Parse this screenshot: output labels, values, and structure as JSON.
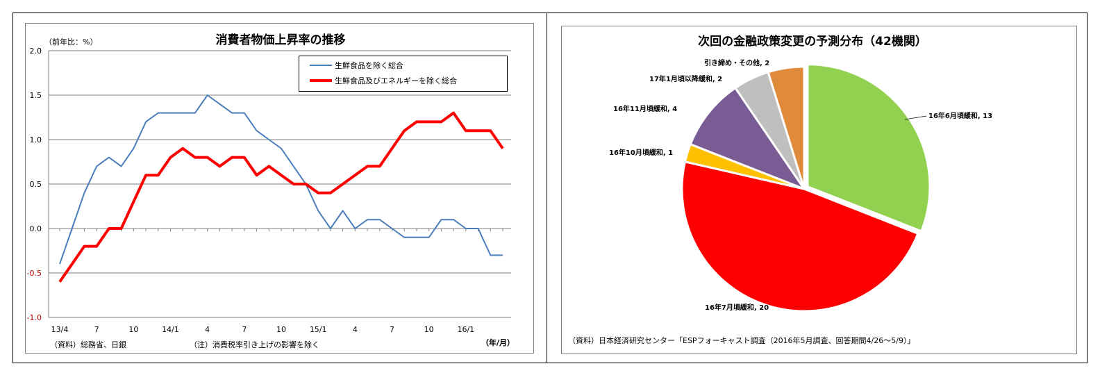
{
  "chart_data": [
    {
      "type": "line",
      "title": "消費者物価上昇率の推移",
      "yunit": "（前年比：%）",
      "xunit": "（年/月）",
      "source": "（資料）総務省、日銀",
      "note": "（注）消費税率引き上げの影響を除く",
      "ylim": [
        -1.0,
        2.0
      ],
      "yticks": [
        "2.0",
        "1.5",
        "1.0",
        "0.5",
        "0.0",
        "-0.5",
        "-1.0"
      ],
      "xticks": [
        {
          "i": 0,
          "label": "13/4"
        },
        {
          "i": 3,
          "label": "7"
        },
        {
          "i": 6,
          "label": "10"
        },
        {
          "i": 9,
          "label": "14/1"
        },
        {
          "i": 12,
          "label": "4"
        },
        {
          "i": 15,
          "label": "7"
        },
        {
          "i": 18,
          "label": "10"
        },
        {
          "i": 21,
          "label": "15/1"
        },
        {
          "i": 24,
          "label": "4"
        },
        {
          "i": 27,
          "label": "7"
        },
        {
          "i": 30,
          "label": "10"
        },
        {
          "i": 33,
          "label": "16/1"
        }
      ],
      "grid": true,
      "legend": "top-right",
      "series": [
        {
          "name": "生鮮食品を除く総合",
          "color": "#4a7ebb",
          "values": [
            -0.4,
            0.0,
            0.4,
            0.7,
            0.8,
            0.7,
            0.9,
            1.2,
            1.3,
            1.3,
            1.3,
            1.3,
            1.5,
            1.4,
            1.3,
            1.3,
            1.1,
            1.0,
            0.9,
            0.7,
            0.5,
            0.2,
            0.0,
            0.2,
            0.0,
            0.1,
            0.1,
            0.0,
            -0.1,
            -0.1,
            -0.1,
            0.1,
            0.1,
            0.0,
            0.0,
            -0.3,
            -0.3
          ]
        },
        {
          "name": "生鮮食品及びエネルギーを除く総合",
          "color": "#ff0000",
          "values": [
            -0.6,
            -0.4,
            -0.2,
            -0.2,
            0.0,
            0.0,
            0.3,
            0.6,
            0.6,
            0.8,
            0.9,
            0.8,
            0.8,
            0.7,
            0.8,
            0.8,
            0.6,
            0.7,
            0.6,
            0.5,
            0.5,
            0.4,
            0.4,
            0.5,
            0.6,
            0.7,
            0.7,
            0.9,
            1.1,
            1.2,
            1.2,
            1.2,
            1.3,
            1.1,
            1.1,
            1.1,
            0.9
          ]
        }
      ]
    },
    {
      "type": "pie",
      "title": "次回の金融政策変更の予測分布（42機関）",
      "source": "（資料）日本経済研究センター「ESPフォーキャスト調査（2016年5月調査、回答期間4/26～5/9）」",
      "slices": [
        {
          "label": "16年6月頃緩和",
          "value": 13,
          "color": "#92d050"
        },
        {
          "label": "16年7月頃緩和",
          "value": 20,
          "color": "#ff0000"
        },
        {
          "label": "16年10月頃緩和",
          "value": 1,
          "color": "#ffc000"
        },
        {
          "label": "16年11月頃緩和",
          "value": 4,
          "color": "#7a5c94"
        },
        {
          "label": "17年1月頃以降緩和",
          "value": 2,
          "color": "#bfbfbf"
        },
        {
          "label": "引き締め・その他",
          "value": 2,
          "color": "#e08a3c"
        }
      ],
      "slice_text": [
        "16年6月頃緩和, 13",
        "16年7月頃緩和, 20",
        "16年10月頃緩和, 1",
        "16年11月頃緩和, 4",
        "17年1月頃以降緩和, 2",
        "引き締め・その他, 2"
      ]
    }
  ]
}
